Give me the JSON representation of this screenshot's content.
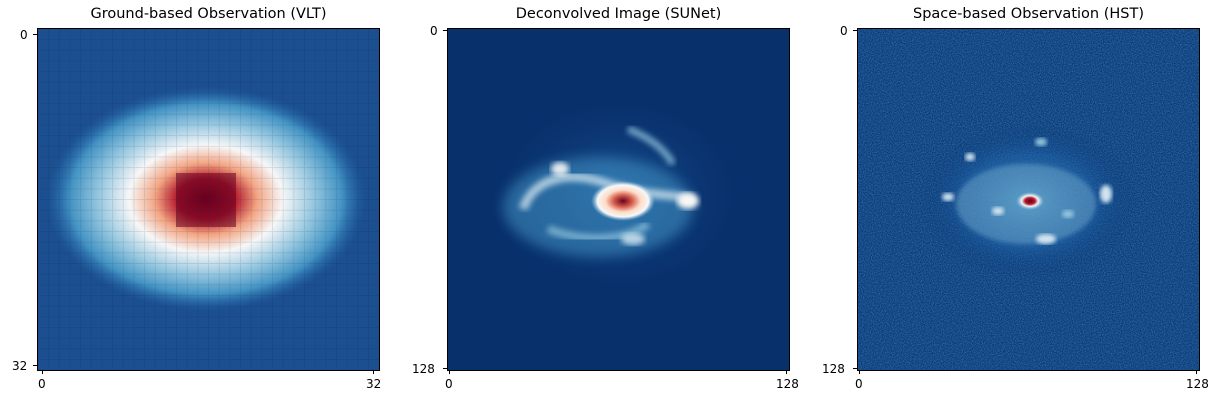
{
  "colormap": "RdBu_r",
  "colors": {
    "deep_blue": "#08306b",
    "mid_blue": "#2166ac",
    "light_blue": "#92c5de",
    "white": "#f7f7f7",
    "salmon": "#f4a582",
    "red": "#d6604d",
    "dark_red": "#67001f"
  },
  "panels": [
    {
      "title": "Ground-based Observation (VLT)",
      "tick_min": "0",
      "tick_max": "32",
      "y_tick_top": "0",
      "y_tick_bottom": "32",
      "x_tick_left": "0",
      "x_tick_right": "32"
    },
    {
      "title": "Deconvolved Image (SUNet)",
      "tick_min": "0",
      "tick_max": "128",
      "y_tick_top": "0",
      "y_tick_bottom": "128",
      "x_tick_left": "0",
      "x_tick_right": "128"
    },
    {
      "title": "Space-based Observation (HST)",
      "tick_min": "0",
      "tick_max": "128",
      "y_tick_top": "0",
      "y_tick_bottom": "128",
      "x_tick_left": "0",
      "x_tick_right": "128"
    }
  ]
}
